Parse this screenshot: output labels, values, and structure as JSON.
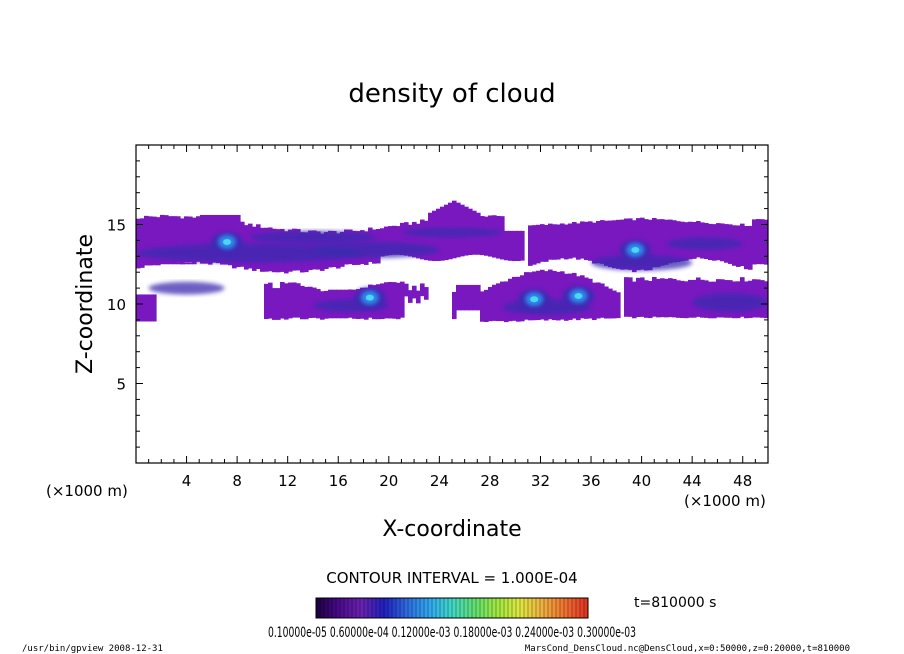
{
  "chart_data": {
    "type": "heatmap",
    "title": "density of cloud",
    "xlabel": "X-coordinate",
    "ylabel": "Z-coordinate",
    "x_unit_label": "(×1000 m)",
    "y_unit_label": "(×1000 m)",
    "xlim": [
      0,
      50
    ],
    "ylim": [
      0,
      20
    ],
    "x_ticks": [
      4,
      8,
      12,
      16,
      20,
      24,
      28,
      32,
      36,
      40,
      44,
      48
    ],
    "y_ticks": [
      5,
      10,
      15
    ],
    "contour_interval_label": "CONTOUR INTERVAL = 1.000E-04",
    "time_label": "t=810000 s",
    "colorbar_labels": "0.10000e-05 0.60000e-04 0.12000e-03 0.18000e-03 0.24000e-03 0.30000e-03",
    "colorbar_palette": [
      "#1a0040",
      "#4b0a8c",
      "#6a22b0",
      "#2020c0",
      "#2e6be0",
      "#30a8f0",
      "#40d8c8",
      "#60e070",
      "#a0e840",
      "#e0e840",
      "#f0b040",
      "#f07030",
      "#e03020"
    ],
    "fill_base_color": "#7a18c0",
    "fill_mid_color": "#3a2ab0",
    "fill_high_color": "#2f8ff0",
    "fill_peak_color": "#48d8f0",
    "regions": [
      {
        "label": "upper layer",
        "x": [
          0.0,
          50.0
        ],
        "z": [
          12.5,
          15.5
        ]
      },
      {
        "label": "lower layer",
        "x": [
          0.0,
          38.0
        ],
        "z": [
          8.8,
          11.2
        ]
      },
      {
        "label": "right lower layer",
        "x": [
          38.0,
          50.0
        ],
        "z": [
          9.0,
          11.0
        ]
      }
    ],
    "maxima": [
      {
        "x": 7.2,
        "z": 13.9
      },
      {
        "x": 18.5,
        "z": 10.4
      },
      {
        "x": 31.5,
        "z": 10.3
      },
      {
        "x": 35.0,
        "z": 10.5
      },
      {
        "x": 39.5,
        "z": 13.4
      }
    ]
  },
  "footer": {
    "left": "/usr/bin/gpview   2008-12-31",
    "right": "MarsCond_DensCloud.nc@DensCloud,x=0:50000,z=0:20000,t=810000"
  }
}
